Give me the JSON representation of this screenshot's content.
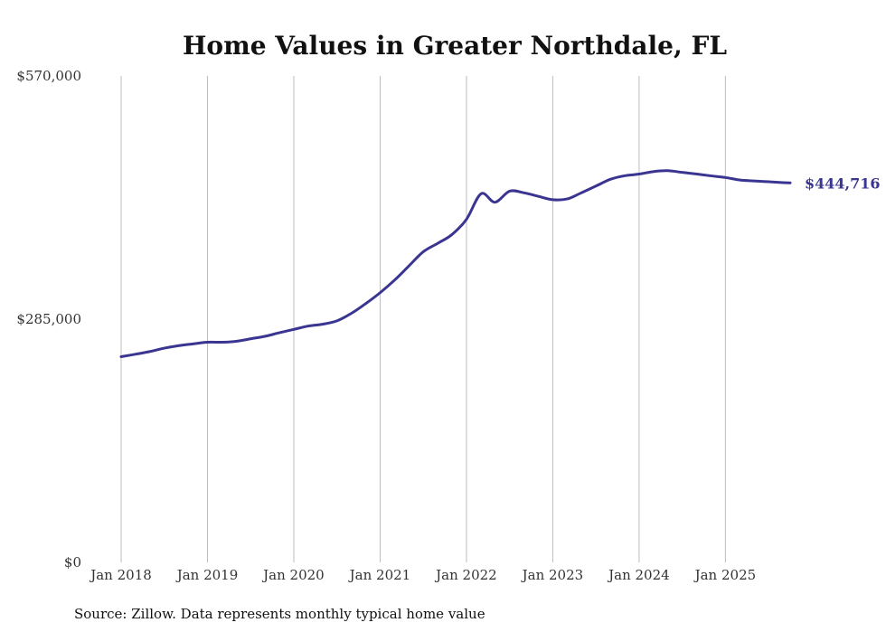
{
  "chart_data": {
    "type": "line",
    "title": "Home Values in Greater Northdale, FL",
    "xlabel": "",
    "ylabel": "",
    "source_note": "Source: Zillow. Data represents monthly typical home value",
    "ylim": [
      0,
      570000
    ],
    "y_ticks": [
      {
        "value": 0,
        "label": "$0"
      },
      {
        "value": 285000,
        "label": "$285,000"
      },
      {
        "value": 570000,
        "label": "$570,000"
      }
    ],
    "x_range": [
      2018.0,
      2025.75
    ],
    "x_ticks": [
      {
        "value": 2018,
        "label": "Jan 2018"
      },
      {
        "value": 2019,
        "label": "Jan 2019"
      },
      {
        "value": 2020,
        "label": "Jan 2020"
      },
      {
        "value": 2021,
        "label": "Jan 2021"
      },
      {
        "value": 2022,
        "label": "Jan 2022"
      },
      {
        "value": 2023,
        "label": "Jan 2023"
      },
      {
        "value": 2024,
        "label": "Jan 2024"
      },
      {
        "value": 2025,
        "label": "Jan 2025"
      }
    ],
    "vertical_grid": true,
    "horizontal_grid": false,
    "line_color": "#3a3591",
    "series": [
      {
        "x": [
          2018.0,
          2018.17,
          2018.33,
          2018.5,
          2018.67,
          2018.83,
          2019.0,
          2019.17,
          2019.33,
          2019.5,
          2019.67,
          2019.83,
          2020.0,
          2020.17,
          2020.33,
          2020.5,
          2020.67,
          2020.83,
          2021.0,
          2021.17,
          2021.33,
          2021.5,
          2021.67,
          2021.83,
          2022.0,
          2022.17,
          2022.33,
          2022.5,
          2022.67,
          2022.83,
          2023.0,
          2023.17,
          2023.33,
          2023.5,
          2023.67,
          2023.83,
          2024.0,
          2024.17,
          2024.33,
          2024.5,
          2024.67,
          2024.83,
          2025.0,
          2025.17,
          2025.33,
          2025.5,
          2025.67,
          2025.75
        ],
        "values": [
          241000,
          244000,
          247000,
          251000,
          254000,
          256000,
          258000,
          258000,
          259000,
          262000,
          265000,
          269000,
          273000,
          277000,
          279000,
          283000,
          292000,
          303000,
          316000,
          331000,
          347000,
          364000,
          374000,
          384000,
          402000,
          432000,
          422000,
          435000,
          433000,
          429000,
          425000,
          426000,
          433000,
          441000,
          449000,
          453000,
          455000,
          458000,
          459000,
          457000,
          455000,
          453000,
          451000,
          448000,
          447000,
          446000,
          445000,
          444716
        ]
      }
    ],
    "end_label": "$444,716"
  }
}
